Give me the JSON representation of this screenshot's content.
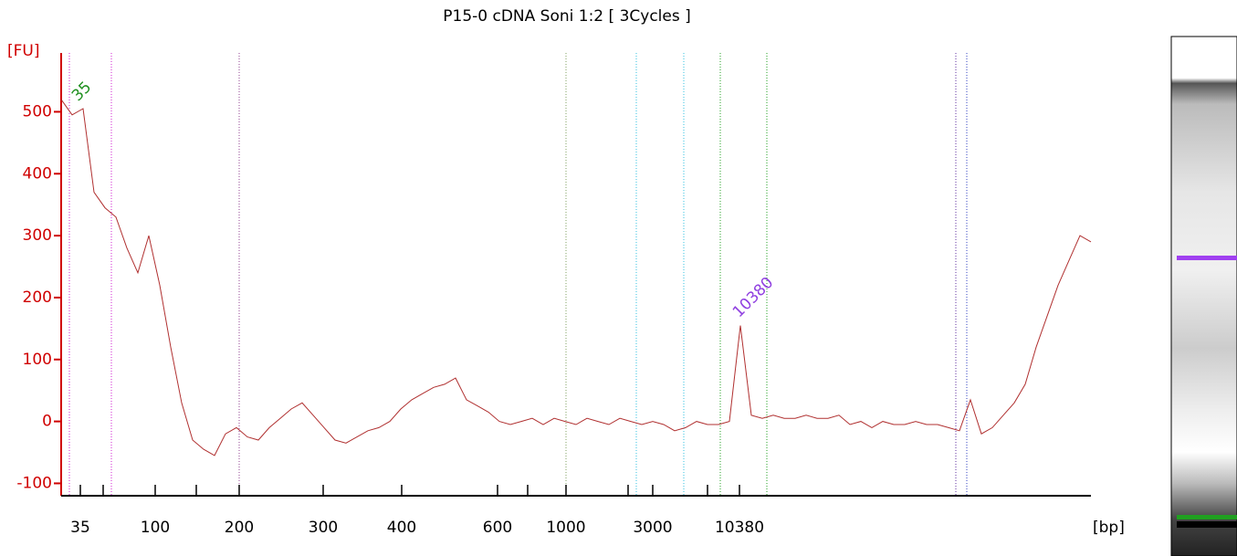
{
  "chart_data": {
    "type": "line",
    "title": "P15-0 cDNA Soni 1:2  [ 3Cycles ]",
    "y_label": "[FU]",
    "x_label": "[bp]",
    "xtick_labels": [
      "35",
      "100",
      "200",
      "300",
      "400",
      "600",
      "1000",
      "3000",
      "10380"
    ],
    "peak_labels": [
      "35",
      "10380"
    ],
    "color": "#b03030",
    "ylim": [
      -120,
      595
    ],
    "yticks": [
      -100,
      0,
      100,
      200,
      300,
      400,
      500
    ],
    "values": [
      520,
      495,
      505,
      370,
      345,
      330,
      280,
      240,
      300,
      220,
      120,
      30,
      -30,
      -45,
      -55,
      -20,
      -10,
      -25,
      -30,
      -10,
      5,
      20,
      30,
      10,
      -10,
      -30,
      -35,
      -25,
      -15,
      -10,
      0,
      20,
      35,
      45,
      55,
      60,
      70,
      35,
      25,
      15,
      0,
      -5,
      0,
      5,
      -5,
      5,
      0,
      -5,
      5,
      0,
      -5,
      5,
      0,
      -5,
      0,
      -5,
      -15,
      -10,
      0,
      -5,
      -5,
      0,
      155,
      10,
      5,
      10,
      5,
      5,
      10,
      5,
      5,
      10,
      -5,
      0,
      -10,
      0,
      -5,
      -5,
      0,
      -5,
      -5,
      -10,
      -15,
      35,
      -20,
      -10,
      10,
      30,
      60,
      120,
      170,
      220,
      260,
      300,
      290
    ]
  }
}
